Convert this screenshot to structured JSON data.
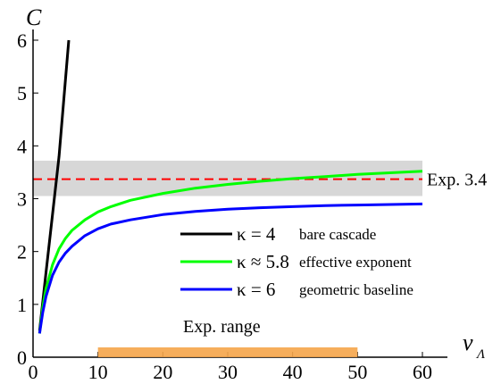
{
  "chart_data": {
    "type": "line",
    "xlabel": "ν",
    "xlabel_sub": "Λ",
    "ylabel": "C",
    "xlim": [
      0,
      60
    ],
    "ylim": [
      0,
      6
    ],
    "x_ticks": [
      0,
      10,
      20,
      30,
      40,
      50,
      60
    ],
    "y_ticks": [
      0,
      1,
      2,
      3,
      4,
      5,
      6
    ],
    "grid": false,
    "legend_position": "middle-right",
    "series": [
      {
        "name": "κ = 4",
        "description": "bare cascade",
        "color": "#000000",
        "x": [
          1,
          2,
          3,
          4,
          5.5
        ],
        "y": [
          0.5,
          1.6,
          2.7,
          3.8,
          6.0
        ]
      },
      {
        "name": "κ ≈ 5.8",
        "description": "effective exponent",
        "color": "#00ff00",
        "x": [
          1,
          1.5,
          2,
          3,
          4,
          5,
          6,
          8,
          10,
          12,
          15,
          20,
          25,
          30,
          35,
          40,
          45,
          50,
          55,
          60
        ],
        "y": [
          0.45,
          0.95,
          1.3,
          1.75,
          2.05,
          2.25,
          2.4,
          2.6,
          2.75,
          2.85,
          2.97,
          3.1,
          3.2,
          3.27,
          3.33,
          3.38,
          3.42,
          3.46,
          3.49,
          3.52
        ]
      },
      {
        "name": "κ = 6",
        "description": "geometric baseline",
        "color": "#0000ff",
        "x": [
          1,
          1.5,
          2,
          3,
          4,
          5,
          6,
          8,
          10,
          12,
          15,
          20,
          25,
          30,
          35,
          40,
          45,
          50,
          55,
          60
        ],
        "y": [
          0.45,
          0.85,
          1.15,
          1.55,
          1.8,
          1.97,
          2.1,
          2.3,
          2.43,
          2.52,
          2.6,
          2.7,
          2.76,
          2.8,
          2.83,
          2.85,
          2.87,
          2.88,
          2.89,
          2.9
        ]
      }
    ],
    "reference_line": {
      "label": "Exp. 3.4",
      "y": 3.37,
      "color": "#ff0000",
      "style": "dashed",
      "band": [
        3.05,
        3.72
      ],
      "band_color": "#d3d3d3"
    },
    "x_range_bar": {
      "label": "Exp. range",
      "from": 10,
      "to": 50,
      "color": "#f5a54a"
    }
  }
}
